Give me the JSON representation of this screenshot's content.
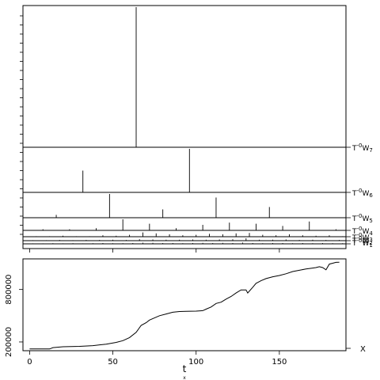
{
  "chart_data": [
    {
      "type": "line",
      "name_panel": "wavelet-coefficients",
      "xlim": [
        -4,
        190
      ],
      "levels": [
        {
          "label_base": "T",
          "label_sup": "-0",
          "label_w": "W",
          "label_sub": "7",
          "spikes": [
            [
              64,
              1.0
            ],
            [
              96,
              0.0
            ]
          ]
        },
        {
          "label_base": "T",
          "label_sup": "-0",
          "label_w": "W",
          "label_sub": "6",
          "spikes": [
            [
              32,
              0.5
            ],
            [
              96,
              1.0
            ]
          ]
        },
        {
          "label_base": "T",
          "label_sup": "-0",
          "label_w": "W",
          "label_sub": "5",
          "spikes": [
            [
              16,
              0.12
            ],
            [
              48,
              1.0
            ],
            [
              80,
              0.35
            ],
            [
              112,
              0.85
            ],
            [
              144,
              0.45
            ]
          ]
        },
        {
          "label_base": "T",
          "label_sup": "-0",
          "label_w": "W",
          "label_sub": "4",
          "spikes": [
            [
              8,
              0.1
            ],
            [
              24,
              0.1
            ],
            [
              40,
              0.2
            ],
            [
              56,
              1.0
            ],
            [
              72,
              0.6
            ],
            [
              88,
              0.2
            ],
            [
              104,
              0.5
            ],
            [
              120,
              0.7
            ],
            [
              136,
              0.6
            ],
            [
              152,
              0.4
            ],
            [
              168,
              0.8
            ],
            [
              184,
              0.1
            ]
          ]
        },
        {
          "label_base": "T",
          "label_sup": "-0",
          "label_w": "W",
          "label_sub": "3",
          "spikes": [
            [
              4,
              0.1
            ],
            [
              12,
              0.1
            ],
            [
              20,
              0.2
            ],
            [
              28,
              0.1
            ],
            [
              36,
              0.1
            ],
            [
              44,
              0.3
            ],
            [
              52,
              0.2
            ],
            [
              60,
              0.4
            ],
            [
              68,
              0.9
            ],
            [
              76,
              0.7
            ],
            [
              84,
              0.5
            ],
            [
              92,
              0.3
            ],
            [
              100,
              0.4
            ],
            [
              108,
              0.6
            ],
            [
              116,
              0.5
            ],
            [
              124,
              0.7
            ],
            [
              132,
              0.8
            ],
            [
              140,
              0.4
            ],
            [
              148,
              0.3
            ],
            [
              156,
              0.5
            ],
            [
              164,
              0.3
            ],
            [
              172,
              0.2
            ],
            [
              180,
              0.3
            ],
            [
              188,
              0.1
            ]
          ]
        },
        {
          "label_base": "T",
          "label_sup": "-0",
          "label_w": "W",
          "label_sub": "2",
          "spikes": [
            [
              2,
              0.2
            ],
            [
              10,
              0.2
            ],
            [
              18,
              0.3
            ],
            [
              26,
              0.2
            ],
            [
              34,
              0.3
            ],
            [
              42,
              0.3
            ],
            [
              50,
              0.4
            ],
            [
              58,
              0.3
            ],
            [
              66,
              0.6
            ],
            [
              74,
              0.5
            ],
            [
              82,
              0.4
            ],
            [
              90,
              0.4
            ],
            [
              98,
              0.5
            ],
            [
              106,
              0.4
            ],
            [
              114,
              0.5
            ],
            [
              122,
              0.6
            ],
            [
              130,
              1.0
            ],
            [
              138,
              0.4
            ],
            [
              146,
              0.4
            ],
            [
              154,
              0.5
            ],
            [
              162,
              0.3
            ],
            [
              170,
              0.4
            ],
            [
              178,
              0.3
            ],
            [
              186,
              0.3
            ]
          ]
        },
        {
          "label_base": "T",
          "label_sup": "-0",
          "label_w": "W",
          "label_sub": "1",
          "spikes": [
            [
              2,
              0.3
            ],
            [
              8,
              0.3
            ],
            [
              14,
              0.4
            ],
            [
              20,
              0.3
            ],
            [
              26,
              0.4
            ],
            [
              32,
              0.3
            ],
            [
              38,
              0.4
            ],
            [
              44,
              0.5
            ],
            [
              50,
              0.4
            ],
            [
              56,
              0.4
            ],
            [
              62,
              0.5
            ],
            [
              68,
              0.7
            ],
            [
              74,
              0.6
            ],
            [
              80,
              0.5
            ],
            [
              86,
              0.5
            ],
            [
              92,
              0.4
            ],
            [
              98,
              0.5
            ],
            [
              104,
              0.6
            ],
            [
              110,
              0.5
            ],
            [
              116,
              0.6
            ],
            [
              122,
              0.5
            ],
            [
              128,
              0.8
            ],
            [
              134,
              0.5
            ],
            [
              140,
              0.4
            ],
            [
              146,
              0.5
            ],
            [
              152,
              0.5
            ],
            [
              158,
              0.4
            ],
            [
              164,
              0.5
            ],
            [
              170,
              0.4
            ],
            [
              176,
              0.5
            ],
            [
              182,
              0.4
            ],
            [
              188,
              0.4
            ]
          ]
        }
      ]
    },
    {
      "type": "line",
      "xlabel": "t",
      "xlabel_sub": "x",
      "series_label": "X",
      "xlim": [
        -4,
        190
      ],
      "ylim": [
        100000,
        1150000
      ],
      "xticks": [
        0,
        50,
        100,
        150
      ],
      "yticks": [
        200000,
        800000
      ],
      "ytick_labels": [
        "200000",
        "800000"
      ],
      "x": [
        0,
        12,
        14,
        20,
        30,
        38,
        46,
        52,
        56,
        60,
        64,
        67,
        70,
        72,
        75,
        78,
        82,
        86,
        90,
        94,
        100,
        104,
        106,
        109,
        112,
        115,
        118,
        121,
        124,
        127,
        130,
        131,
        134,
        136,
        137,
        139,
        142,
        146,
        150,
        154,
        158,
        162,
        166,
        170,
        172,
        174,
        176,
        178,
        180,
        182,
        184,
        186
      ],
      "y": [
        120000,
        120000,
        135000,
        145000,
        150000,
        158000,
        175000,
        195000,
        215000,
        250000,
        310000,
        390000,
        420000,
        450000,
        475000,
        500000,
        520000,
        540000,
        548000,
        550000,
        553000,
        558000,
        575000,
        600000,
        640000,
        655000,
        690000,
        720000,
        760000,
        795000,
        795000,
        760000,
        825000,
        870000,
        880000,
        900000,
        925000,
        945000,
        960000,
        980000,
        1005000,
        1020000,
        1035000,
        1045000,
        1050000,
        1060000,
        1050000,
        1025000,
        1090000,
        1100000,
        1110000,
        1112000
      ]
    }
  ]
}
